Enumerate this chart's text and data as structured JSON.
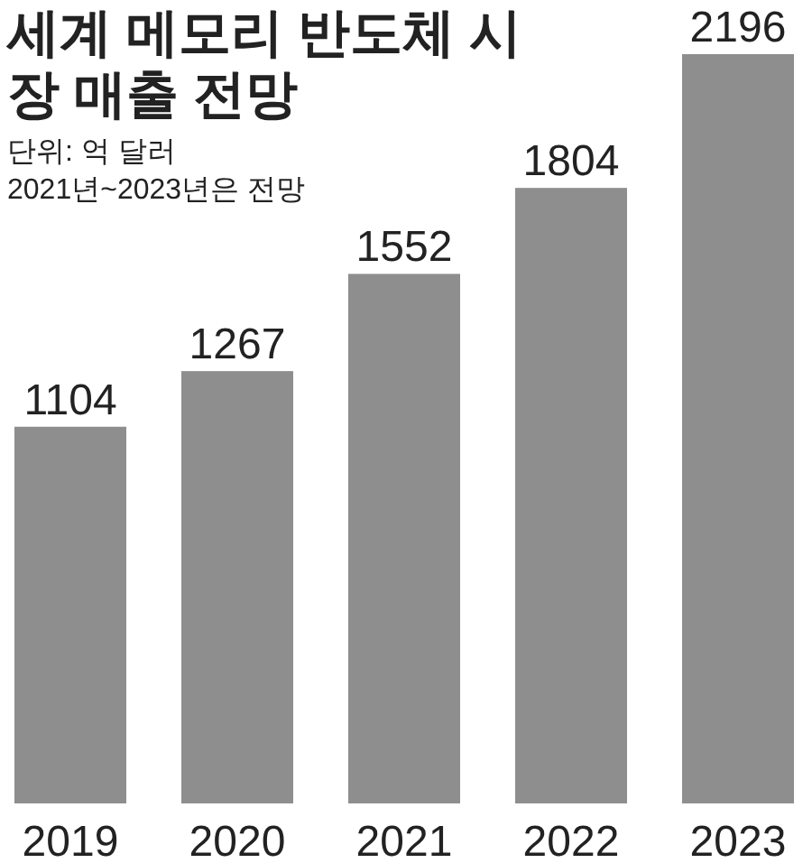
{
  "chart_data": {
    "type": "bar",
    "title": "세계 메모리 반도체 시장 매출 전망",
    "annotations": [
      "단위: 억 달러",
      "2021년~2023년은 전망"
    ],
    "categories": [
      "2019",
      "2020",
      "2021",
      "2022",
      "2023"
    ],
    "values": [
      1104,
      1267,
      1552,
      1804,
      2196
    ],
    "color": "#8e8e8e",
    "data_labels": true
  }
}
